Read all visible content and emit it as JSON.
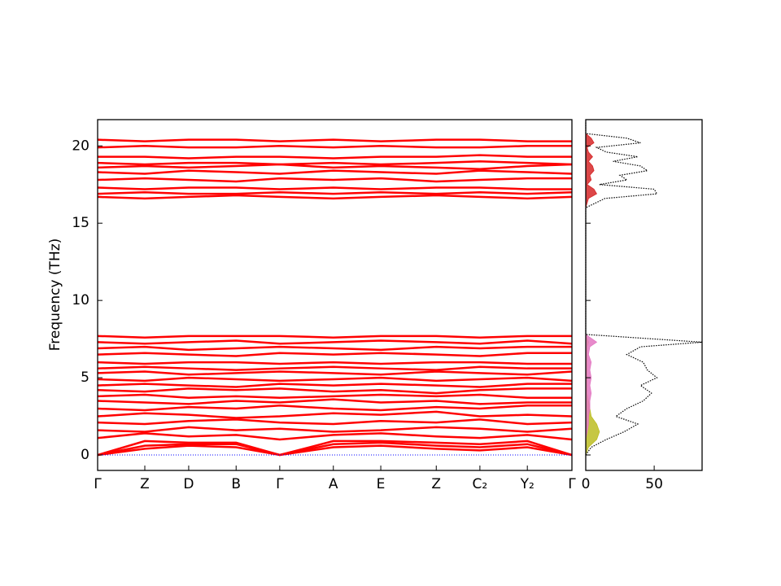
{
  "chart_data": [
    {
      "type": "bands",
      "ylabel": "Frequency (THz)",
      "color": "#ff0000",
      "hline": {
        "value": 0,
        "color": "#0000ff"
      },
      "xlim": [
        0,
        1
      ],
      "ylim": [
        -1,
        21.7
      ],
      "yticks": [
        0,
        5,
        10,
        15,
        20
      ],
      "xticks": [
        {
          "value": 0,
          "label": "Γ"
        },
        {
          "value": 0.0995,
          "label": "Z"
        },
        {
          "value": 0.192,
          "label": "D"
        },
        {
          "value": 0.292,
          "label": "B"
        },
        {
          "value": 0.384,
          "label": "Γ"
        },
        {
          "value": 0.497,
          "label": "A"
        },
        {
          "value": 0.597,
          "label": "E"
        },
        {
          "value": 0.714,
          "label": "Z"
        },
        {
          "value": 0.806,
          "label": "C₂"
        },
        {
          "value": 0.906,
          "label": "Y₂"
        },
        {
          "value": 1,
          "label": "Γ"
        }
      ],
      "x": [
        0,
        0.0995,
        0.192,
        0.292,
        0.384,
        0.497,
        0.597,
        0.714,
        0.806,
        0.906,
        1
      ],
      "series": [
        {
          "values": [
            0,
            0.4,
            0.6,
            0.5,
            0,
            0.5,
            0.6,
            0.4,
            0.3,
            0.5,
            0
          ]
        },
        {
          "values": [
            0,
            0.6,
            0.7,
            0.7,
            0,
            0.7,
            0.8,
            0.6,
            0.5,
            0.7,
            0
          ]
        },
        {
          "values": [
            0,
            0.9,
            0.8,
            0.8,
            0,
            0.9,
            0.9,
            0.8,
            0.7,
            0.9,
            0
          ]
        },
        {
          "values": [
            1.1,
            1.4,
            1.2,
            1.3,
            1.0,
            1.3,
            1.4,
            1.2,
            1.1,
            1.3,
            1.0
          ]
        },
        {
          "values": [
            1.6,
            1.5,
            1.8,
            1.6,
            1.7,
            1.5,
            1.6,
            1.8,
            1.7,
            1.5,
            1.7
          ]
        },
        {
          "values": [
            2.1,
            2.0,
            2.2,
            2.3,
            2.1,
            2.0,
            2.2,
            2.1,
            2.3,
            2.0,
            2.1
          ]
        },
        {
          "values": [
            2.5,
            2.7,
            2.6,
            2.4,
            2.5,
            2.7,
            2.6,
            2.8,
            2.5,
            2.6,
            2.5
          ]
        },
        {
          "values": [
            3.0,
            2.9,
            3.1,
            3.0,
            3.2,
            3.0,
            2.9,
            3.1,
            3.0,
            3.2,
            3.2
          ]
        },
        {
          "values": [
            3.5,
            3.4,
            3.3,
            3.5,
            3.4,
            3.6,
            3.4,
            3.5,
            3.3,
            3.4,
            3.4
          ]
        },
        {
          "values": [
            3.8,
            3.9,
            3.7,
            3.8,
            3.7,
            3.8,
            3.9,
            3.8,
            3.9,
            3.7,
            3.7
          ]
        },
        {
          "values": [
            4.2,
            4.1,
            4.3,
            4.2,
            4.3,
            4.1,
            4.2,
            4.0,
            4.2,
            4.3,
            4.3
          ]
        },
        {
          "values": [
            4.5,
            4.6,
            4.5,
            4.4,
            4.6,
            4.5,
            4.6,
            4.5,
            4.4,
            4.6,
            4.6
          ]
        },
        {
          "values": [
            4.9,
            4.8,
            5.0,
            4.9,
            4.8,
            4.9,
            5.0,
            4.8,
            4.9,
            5.0,
            4.8
          ]
        },
        {
          "values": [
            5.3,
            5.4,
            5.2,
            5.3,
            5.4,
            5.3,
            5.2,
            5.4,
            5.3,
            5.2,
            5.4
          ]
        },
        {
          "values": [
            5.6,
            5.7,
            5.6,
            5.5,
            5.6,
            5.7,
            5.6,
            5.5,
            5.7,
            5.6,
            5.6
          ]
        },
        {
          "values": [
            6.0,
            5.9,
            6.0,
            6.0,
            5.9,
            6.0,
            5.9,
            6.0,
            6.0,
            5.9,
            5.9
          ]
        },
        {
          "values": [
            6.5,
            6.6,
            6.5,
            6.4,
            6.6,
            6.5,
            6.6,
            6.5,
            6.4,
            6.6,
            6.6
          ]
        },
        {
          "values": [
            6.9,
            7.0,
            6.8,
            6.9,
            7.0,
            6.9,
            6.8,
            7.0,
            6.9,
            7.0,
            7.0
          ]
        },
        {
          "values": [
            7.3,
            7.2,
            7.3,
            7.4,
            7.2,
            7.3,
            7.4,
            7.3,
            7.2,
            7.4,
            7.2
          ]
        },
        {
          "values": [
            7.7,
            7.6,
            7.7,
            7.7,
            7.7,
            7.6,
            7.7,
            7.7,
            7.6,
            7.7,
            7.7
          ]
        },
        {
          "values": [
            16.7,
            16.6,
            16.7,
            16.8,
            16.7,
            16.6,
            16.7,
            16.8,
            16.7,
            16.6,
            16.7
          ]
        },
        {
          "values": [
            16.9,
            17.0,
            16.9,
            16.9,
            17.0,
            16.9,
            17.0,
            16.9,
            17.0,
            16.9,
            17.0
          ]
        },
        {
          "values": [
            17.3,
            17.2,
            17.3,
            17.3,
            17.2,
            17.3,
            17.2,
            17.3,
            17.3,
            17.2,
            17.2
          ]
        },
        {
          "values": [
            17.8,
            17.9,
            17.8,
            17.7,
            17.9,
            17.8,
            17.9,
            17.7,
            17.8,
            17.9,
            17.9
          ]
        },
        {
          "values": [
            18.3,
            18.2,
            18.4,
            18.3,
            18.2,
            18.4,
            18.3,
            18.2,
            18.4,
            18.3,
            18.2
          ]
        },
        {
          "values": [
            18.6,
            18.7,
            18.6,
            18.7,
            18.8,
            18.6,
            18.7,
            18.6,
            18.5,
            18.7,
            18.8
          ]
        },
        {
          "values": [
            18.9,
            18.8,
            18.9,
            18.9,
            18.8,
            18.9,
            18.8,
            18.9,
            19.0,
            18.9,
            18.8
          ]
        },
        {
          "values": [
            19.3,
            19.3,
            19.2,
            19.3,
            19.3,
            19.2,
            19.3,
            19.3,
            19.4,
            19.3,
            19.3
          ]
        },
        {
          "values": [
            19.9,
            20.0,
            19.9,
            19.9,
            20.0,
            19.9,
            20.0,
            19.9,
            19.9,
            20.0,
            20.0
          ]
        },
        {
          "values": [
            20.4,
            20.3,
            20.4,
            20.4,
            20.3,
            20.4,
            20.3,
            20.4,
            20.4,
            20.3,
            20.3
          ]
        }
      ]
    },
    {
      "type": "dos",
      "xlim": [
        0,
        85
      ],
      "xticks": [
        0,
        50
      ],
      "y": [
        0,
        0.5,
        1,
        1.5,
        2,
        2.5,
        3,
        3.5,
        4,
        4.5,
        5,
        5.5,
        6,
        6.5,
        7,
        7.3,
        7.8,
        8.5,
        10,
        12,
        14,
        16,
        16.6,
        16.9,
        17.2,
        17.5,
        17.8,
        18.1,
        18.4,
        18.7,
        19.0,
        19.3,
        19.6,
        19.9,
        20.2,
        20.5,
        20.8,
        21.5
      ],
      "series": [
        {
          "color": "#bcbd22",
          "fill": true,
          "values": [
            0,
            2,
            8,
            10,
            8,
            4,
            3,
            2,
            1,
            1,
            1,
            1,
            1,
            1,
            1,
            2,
            0,
            0,
            0,
            0,
            0,
            0,
            0,
            0,
            0,
            0,
            0,
            0,
            0,
            0,
            0,
            0,
            0,
            0,
            0,
            0,
            0,
            0
          ]
        },
        {
          "color": "#e377c2",
          "fill": true,
          "values": [
            0,
            0,
            0,
            1,
            2,
            2,
            3,
            3,
            4,
            3,
            4,
            3,
            4,
            2,
            3,
            8,
            0,
            0,
            0,
            0,
            0,
            0,
            0,
            0,
            0,
            0,
            0,
            0,
            0,
            0,
            0,
            0,
            0,
            0,
            0,
            0,
            0,
            0
          ]
        },
        {
          "color": "#d62728",
          "fill": true,
          "values": [
            0,
            0,
            0,
            0,
            0,
            0,
            0,
            0,
            0,
            0,
            0,
            0,
            0,
            0,
            0,
            0,
            0,
            0,
            0,
            0,
            0,
            0,
            2,
            8,
            6,
            1,
            4,
            3,
            6,
            5,
            2,
            5,
            2,
            1,
            6,
            4,
            0,
            0
          ]
        },
        {
          "color": "#000000",
          "fill": false,
          "dash": "dotted",
          "values": [
            0,
            4,
            15,
            28,
            38,
            22,
            30,
            42,
            48,
            40,
            52,
            45,
            42,
            30,
            40,
            85,
            0,
            0,
            0,
            0,
            0,
            0,
            14,
            52,
            50,
            10,
            30,
            25,
            45,
            40,
            20,
            38,
            15,
            8,
            40,
            30,
            0,
            0
          ]
        }
      ]
    }
  ]
}
